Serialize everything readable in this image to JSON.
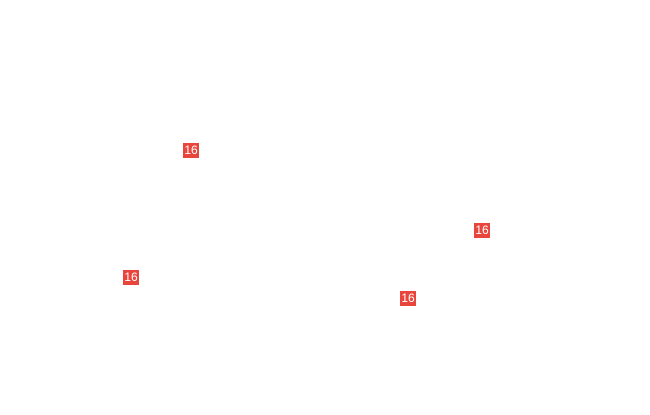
{
  "badge_color": "#e8453c",
  "badges": [
    {
      "label": "16"
    },
    {
      "label": "16"
    },
    {
      "label": "16"
    },
    {
      "label": "16"
    }
  ]
}
